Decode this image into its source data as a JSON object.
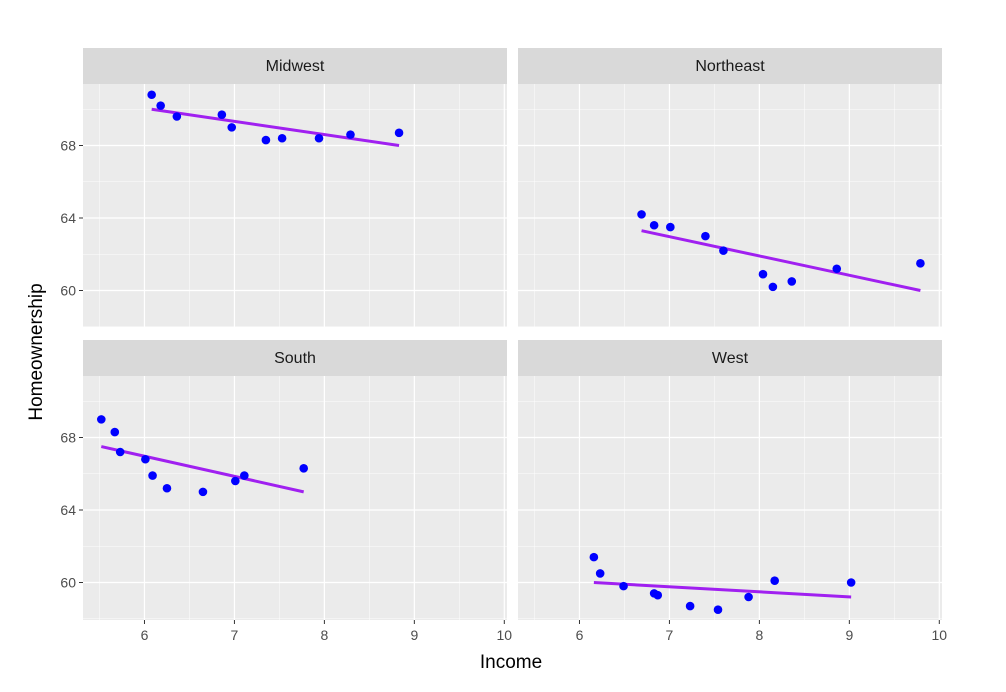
{
  "chart_data": {
    "type": "scatter",
    "xlabel": "Income",
    "ylabel": "Homeownership",
    "xlim": [
      5.4,
      10.0
    ],
    "ylim": [
      58.0,
      72.0
    ],
    "x_ticks": [
      6,
      7,
      8,
      9,
      10
    ],
    "y_ticks": [
      60,
      64,
      68
    ],
    "point_color": "#0000ff",
    "fit_line_color": "#a020f0",
    "panel_background": "#ebebeb",
    "strip_background": "#d9d9d9",
    "grid": true,
    "facets": [
      {
        "name": "Midwest",
        "points": [
          {
            "x": 6.08,
            "y": 70.8
          },
          {
            "x": 6.18,
            "y": 70.2
          },
          {
            "x": 6.36,
            "y": 69.6
          },
          {
            "x": 6.86,
            "y": 69.7
          },
          {
            "x": 6.97,
            "y": 69.0
          },
          {
            "x": 7.35,
            "y": 68.3
          },
          {
            "x": 7.53,
            "y": 68.4
          },
          {
            "x": 7.94,
            "y": 68.4
          },
          {
            "x": 8.29,
            "y": 68.6
          },
          {
            "x": 8.83,
            "y": 68.7
          }
        ],
        "fit": {
          "x": [
            6.08,
            8.83
          ],
          "y": [
            70.0,
            68.0
          ]
        }
      },
      {
        "name": "Northeast",
        "points": [
          {
            "x": 6.69,
            "y": 64.2
          },
          {
            "x": 6.83,
            "y": 63.6
          },
          {
            "x": 7.01,
            "y": 63.5
          },
          {
            "x": 7.4,
            "y": 63.0
          },
          {
            "x": 7.6,
            "y": 62.2
          },
          {
            "x": 8.04,
            "y": 60.9
          },
          {
            "x": 8.15,
            "y": 60.2
          },
          {
            "x": 8.36,
            "y": 60.5
          },
          {
            "x": 8.86,
            "y": 61.2
          },
          {
            "x": 9.79,
            "y": 61.5
          }
        ],
        "fit": {
          "x": [
            6.69,
            9.79
          ],
          "y": [
            63.3,
            60.0
          ]
        }
      },
      {
        "name": "South",
        "points": [
          {
            "x": 5.52,
            "y": 69.0
          },
          {
            "x": 5.67,
            "y": 68.3
          },
          {
            "x": 5.73,
            "y": 67.2
          },
          {
            "x": 6.01,
            "y": 66.8
          },
          {
            "x": 6.09,
            "y": 65.9
          },
          {
            "x": 6.25,
            "y": 65.2
          },
          {
            "x": 6.65,
            "y": 65.0
          },
          {
            "x": 7.01,
            "y": 65.6
          },
          {
            "x": 7.11,
            "y": 65.9
          },
          {
            "x": 7.77,
            "y": 66.3
          }
        ],
        "fit": {
          "x": [
            5.52,
            7.77
          ],
          "y": [
            67.5,
            65.0
          ]
        }
      },
      {
        "name": "West",
        "points": [
          {
            "x": 6.16,
            "y": 61.4
          },
          {
            "x": 6.23,
            "y": 60.5
          },
          {
            "x": 6.49,
            "y": 59.8
          },
          {
            "x": 6.83,
            "y": 59.4
          },
          {
            "x": 6.87,
            "y": 59.3
          },
          {
            "x": 7.23,
            "y": 58.7
          },
          {
            "x": 7.54,
            "y": 58.5
          },
          {
            "x": 7.88,
            "y": 59.2
          },
          {
            "x": 8.17,
            "y": 60.1
          },
          {
            "x": 9.02,
            "y": 60.0
          }
        ],
        "fit": {
          "x": [
            6.16,
            9.02
          ],
          "y": [
            60.0,
            59.2
          ]
        }
      }
    ]
  }
}
